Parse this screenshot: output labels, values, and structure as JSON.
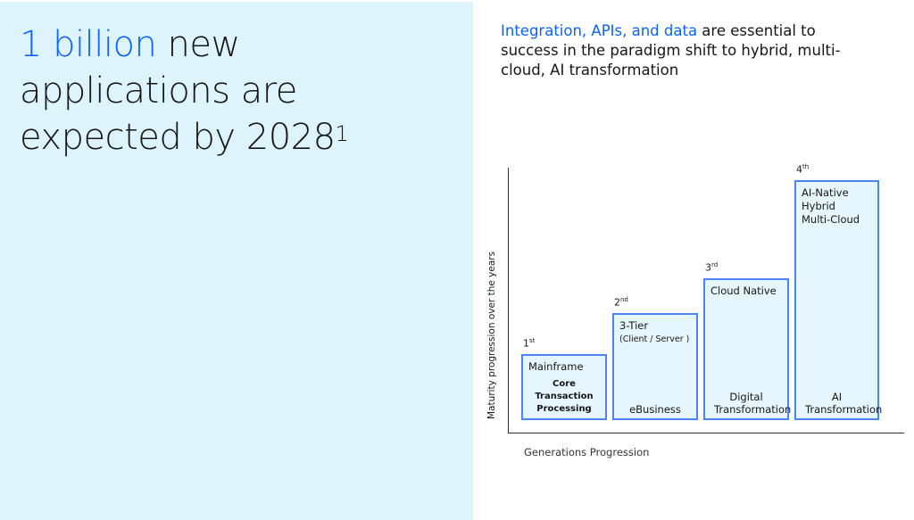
{
  "headline": {
    "accent": "1 billion",
    "rest_line1": " new",
    "line2": "applications are",
    "line3": "expected by 2028",
    "footnote": "1"
  },
  "intro": {
    "accent": "Integration, APIs, and data",
    "rest": " are essential to success in the paradigm shift to hybrid, multi-cloud, AI transformation"
  },
  "diagram": {
    "y_axis_label": "Maturity progression over the years",
    "x_axis_label": "Generations Progression",
    "generations": [
      {
        "num": "1",
        "suffix": "st",
        "title": "Mainframe",
        "subtitle": "",
        "era": "Core Transaction Processing"
      },
      {
        "num": "2",
        "suffix": "nd",
        "title": "3-Tier",
        "subtitle": "(Client / Server )",
        "era": "eBusiness"
      },
      {
        "num": "3",
        "suffix": "rd",
        "title": "Cloud Native",
        "subtitle": "",
        "era": "Digital Transformation"
      },
      {
        "num": "4",
        "suffix": "th",
        "title": "AI-Native Hybrid Multi-Cloud",
        "subtitle": "",
        "era": "AI Transformation"
      }
    ]
  },
  "colors": {
    "accent": "#0f62fe",
    "panel": "#def4fd",
    "box_border": "#4a84f5",
    "box_fill": "#e6f6ff"
  }
}
